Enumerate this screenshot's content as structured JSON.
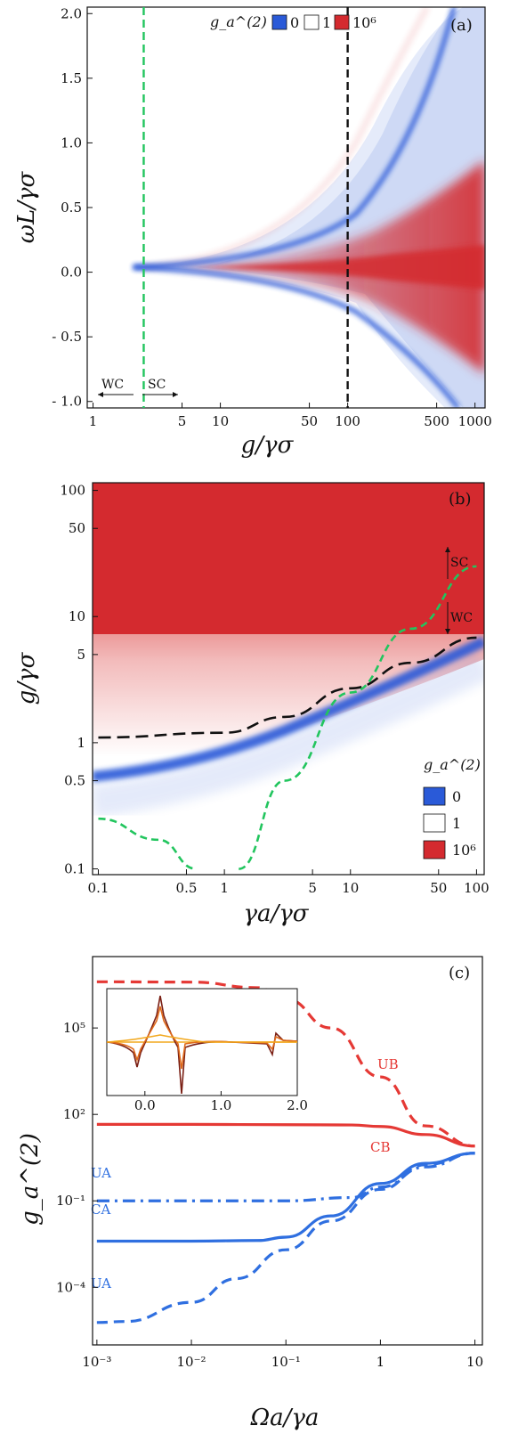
{
  "chart_data": [
    {
      "panel": "(a)",
      "type": "heatmap",
      "xlabel": "g/γσ",
      "ylabel": "ωL/γσ",
      "xscale": "log",
      "xlim": [
        0.9,
        1200
      ],
      "ylim": [
        -1.05,
        2.05
      ],
      "xticks": [
        1,
        5,
        10,
        50,
        100,
        500,
        1000
      ],
      "xtick_labels": [
        "1",
        "5",
        "10",
        "50",
        "100",
        "500",
        "1000"
      ],
      "yticks": [
        -1.0,
        -0.5,
        0.0,
        0.5,
        1.0,
        1.5,
        2.0
      ],
      "ytick_labels": [
        "- 1.0",
        "- 0.5",
        "0.0",
        "0.5",
        "1.0",
        "1.5",
        "2.0"
      ],
      "legend": {
        "title": "g_a^(2)",
        "entries": [
          {
            "label": "0",
            "color": "#2a5ad8"
          },
          {
            "label": "1",
            "color": "#ffffff"
          },
          {
            "label": "10⁶",
            "color": "#d42a2f"
          }
        ],
        "placement": "top"
      },
      "vlines": [
        {
          "x": 2.5,
          "style": "dashed",
          "color": "#22c55e"
        },
        {
          "x": 100,
          "style": "dashed",
          "color": "#111111"
        }
      ],
      "annotations": [
        "WC",
        "SC"
      ]
    },
    {
      "panel": "(b)",
      "type": "heatmap",
      "xlabel": "γa/γσ",
      "ylabel": "g/γσ",
      "xscale": "log",
      "yscale": "log",
      "xlim": [
        0.09,
        115
      ],
      "ylim": [
        0.09,
        115
      ],
      "xticks": [
        0.1,
        0.5,
        1,
        5,
        10,
        50,
        100
      ],
      "xtick_labels": [
        "0.1",
        "0.5",
        "1",
        "5",
        "10",
        "50",
        "100"
      ],
      "yticks": [
        0.1,
        0.5,
        1,
        5,
        10,
        50,
        100
      ],
      "ytick_labels": [
        "0.1",
        "0.5",
        "1",
        "5",
        "10",
        "50",
        "100"
      ],
      "legend": {
        "title": "g_a^(2)",
        "entries": [
          {
            "label": "0",
            "color": "#2a5ad8"
          },
          {
            "label": "1",
            "color": "#ffffff"
          },
          {
            "label": "10⁶",
            "color": "#d42a2f"
          }
        ],
        "placement": "bottom-right"
      },
      "curves": [
        {
          "style": "dashed",
          "color": "#111111",
          "x": [
            0.1,
            1,
            3,
            10,
            30,
            100
          ],
          "y": [
            1.1,
            1.2,
            1.6,
            2.7,
            4.3,
            6.8
          ]
        },
        {
          "style": "dashed",
          "color": "#22c55e",
          "x": [
            0.1,
            0.3,
            0.6
          ],
          "y": [
            0.25,
            0.17,
            0.1
          ]
        },
        {
          "style": "dashed",
          "color": "#22c55e",
          "x": [
            1.3,
            3,
            10,
            30,
            100
          ],
          "y": [
            0.1,
            0.5,
            2.5,
            8,
            25
          ]
        }
      ],
      "annotations": [
        "SC",
        "WC"
      ]
    },
    {
      "panel": "(c)",
      "type": "line",
      "xlabel": "Ωa/γa",
      "ylabel": "g_a^(2)",
      "xscale": "log",
      "yscale": "log",
      "xlim": [
        0.0009,
        12
      ],
      "ylim": [
        1e-06,
        30000000.0
      ],
      "xticks": [
        0.001,
        0.01,
        0.1,
        1,
        10
      ],
      "xtick_labels": [
        "10⁻³",
        "10⁻²",
        "10⁻¹",
        "1",
        "10"
      ],
      "yticks": [
        0.0001,
        0.1,
        100,
        100000
      ],
      "ytick_labels": [
        "10⁻⁴",
        "10⁻¹",
        "10²",
        "10⁵"
      ],
      "series": [
        {
          "name": "UB",
          "color": "#e53935",
          "style": "dashed",
          "x": [
            0.001,
            0.01,
            0.05,
            0.1,
            0.3,
            1,
            3,
            10
          ],
          "y": [
            4000000,
            3900000,
            2500000,
            1000000,
            100000,
            2000,
            40,
            8
          ]
        },
        {
          "name": "CB",
          "color": "#e53935",
          "style": "solid",
          "x": [
            0.001,
            0.01,
            0.1,
            0.5,
            1,
            3,
            10
          ],
          "y": [
            45,
            45,
            44,
            43,
            38,
            20,
            8
          ]
        },
        {
          "name": "UA",
          "color": "#2f6fe0",
          "style": "dashdot",
          "x": [
            0.001,
            0.01,
            0.1,
            0.5,
            1,
            3,
            10
          ],
          "y": [
            0.1,
            0.1,
            0.1,
            0.13,
            0.3,
            1.5,
            4.5
          ]
        },
        {
          "name": "CA",
          "color": "#2f6fe0",
          "style": "solid",
          "x": [
            0.001,
            0.01,
            0.05,
            0.1,
            0.3,
            1,
            3,
            10
          ],
          "y": [
            0.004,
            0.004,
            0.0042,
            0.0055,
            0.03,
            0.4,
            2,
            4.5
          ]
        },
        {
          "name": "UA",
          "color": "#2f6fe0",
          "style": "dashed",
          "x": [
            0.001,
            0.002,
            0.01,
            0.03,
            0.1,
            0.3,
            1,
            3,
            10
          ],
          "y": [
            6e-06,
            6.5e-06,
            3e-05,
            0.0002,
            0.002,
            0.02,
            0.25,
            1.8,
            4.5
          ]
        }
      ],
      "inset": {
        "xticks": [
          0.0,
          1.0,
          2.0
        ],
        "xtick_labels": [
          "0.0",
          "1.0",
          "2.0"
        ],
        "xlim": [
          -0.5,
          2.0
        ],
        "series": [
          {
            "color": "#7a1f14"
          },
          {
            "color": "#e06a1a"
          },
          {
            "color": "#f2a81d"
          }
        ]
      }
    }
  ]
}
